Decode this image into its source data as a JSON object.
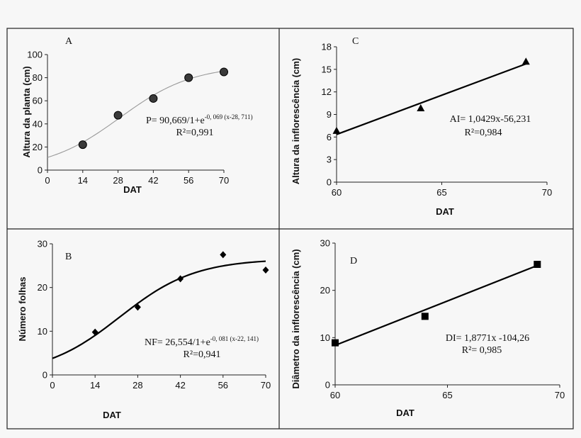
{
  "chart_data": [
    {
      "panel": "A",
      "type": "scatter",
      "xlabel": "DAT",
      "ylabel": "Altura da planta (cm)",
      "xlim": [
        0,
        70
      ],
      "ylim": [
        0,
        100
      ],
      "xticks": [
        "0",
        "14",
        "28",
        "42",
        "56",
        "70"
      ],
      "yticks": [
        "0",
        "20",
        "40",
        "60",
        "80",
        "100"
      ],
      "points": [
        {
          "x": 14,
          "y": 22
        },
        {
          "x": 28,
          "y": 47.5
        },
        {
          "x": 42,
          "y": 62
        },
        {
          "x": 56,
          "y": 80
        },
        {
          "x": 70,
          "y": 85
        }
      ],
      "fit": {
        "type": "logistic",
        "a": 90.669,
        "k": 0.069,
        "x0": 28.711
      },
      "equation": {
        "main": "P= 90,669/1+e",
        "sup": "-0, 069 (x-28, 711)",
        "r2": "R²=0,991"
      },
      "marker": "circle"
    },
    {
      "panel": "C",
      "type": "scatter",
      "xlabel": "DAT",
      "ylabel": "Altura da inflorescência (cm)",
      "xlim": [
        60,
        70
      ],
      "ylim": [
        0,
        18
      ],
      "xticks": [
        "60",
        "65",
        "70"
      ],
      "yticks": [
        "0",
        "3",
        "6",
        "9",
        "12",
        "15",
        "18"
      ],
      "points": [
        {
          "x": 60,
          "y": 6.8
        },
        {
          "x": 64,
          "y": 9.8
        },
        {
          "x": 69,
          "y": 16
        }
      ],
      "fit": {
        "type": "linear",
        "slope": 1.0429,
        "intercept": -56.231
      },
      "equation": {
        "main": "AI= 1,0429x-56,231",
        "r2": "R²=0,984"
      },
      "marker": "triangle"
    },
    {
      "panel": "B",
      "type": "scatter",
      "xlabel": "DAT",
      "ylabel": "Número folhas",
      "xlim": [
        0,
        70
      ],
      "ylim": [
        0,
        30
      ],
      "xticks": [
        "0",
        "14",
        "28",
        "42",
        "56",
        "70"
      ],
      "yticks": [
        "0",
        "10",
        "20",
        "30"
      ],
      "points": [
        {
          "x": 14,
          "y": 9.8
        },
        {
          "x": 28,
          "y": 15.5
        },
        {
          "x": 42,
          "y": 22
        },
        {
          "x": 56,
          "y": 27.5
        },
        {
          "x": 70,
          "y": 24
        }
      ],
      "fit": {
        "type": "logistic",
        "a": 26.554,
        "k": 0.081,
        "x0": 22.141
      },
      "equation": {
        "main": "NF= 26,554/1+e",
        "sup": "-0, 081 (x-22, 141)",
        "r2": "R²=0,941"
      },
      "marker": "diamond"
    },
    {
      "panel": "D",
      "type": "scatter",
      "xlabel": "DAT",
      "ylabel": "Diâmetro da inflorescência (cm)",
      "xlim": [
        60,
        70
      ],
      "ylim": [
        0,
        30
      ],
      "xticks": [
        "60",
        "65",
        "70"
      ],
      "yticks": [
        "0",
        "10",
        "20",
        "30"
      ],
      "points": [
        {
          "x": 60,
          "y": 8.9
        },
        {
          "x": 64,
          "y": 14.5
        },
        {
          "x": 69,
          "y": 25.5
        }
      ],
      "fit": {
        "type": "linear",
        "slope": 1.8771,
        "intercept": -104.26
      },
      "equation": {
        "main": "DI= 1,8771x -104,26",
        "r2": "R²= 0,985"
      },
      "marker": "square"
    }
  ]
}
